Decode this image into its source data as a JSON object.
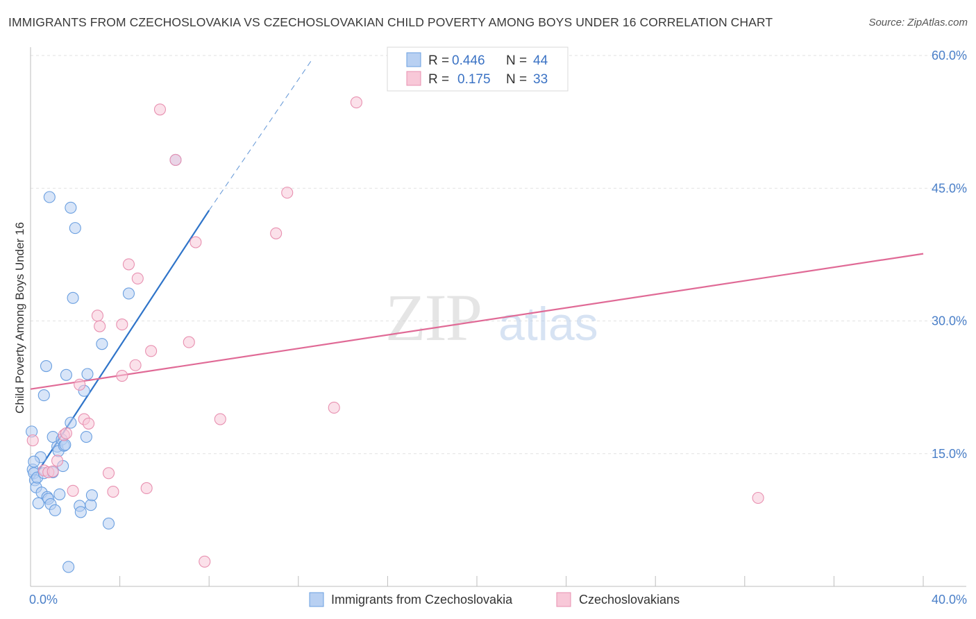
{
  "title": "IMMIGRANTS FROM CZECHOSLOVAKIA VS CZECHOSLOVAKIAN CHILD POVERTY AMONG BOYS UNDER 16 CORRELATION CHART",
  "source": "Source: ZipAtlas.com",
  "watermark": {
    "zip": "ZIP",
    "atlas": "atlas"
  },
  "chart_data": {
    "type": "scatter",
    "title": "IMMIGRANTS FROM CZECHOSLOVAKIA VS CZECHOSLOVAKIAN CHILD POVERTY AMONG BOYS UNDER 16 CORRELATION CHART",
    "xlabel": "",
    "ylabel": "Child Poverty Among Boys Under 16",
    "xlim": [
      0,
      40
    ],
    "ylim": [
      0,
      60
    ],
    "x_tick_labels": {
      "min": "0.0%",
      "max": "40.0%"
    },
    "y_ticks": [
      15,
      30,
      45,
      60
    ],
    "y_tick_labels": [
      "15.0%",
      "30.0%",
      "45.0%",
      "60.0%"
    ],
    "grid": true,
    "legend_position": "top-center",
    "stats": [
      {
        "r_label": "R =",
        "r": "0.446",
        "n_label": "N =",
        "n": "44"
      },
      {
        "r_label": "R =",
        "r": "0.175",
        "n_label": "N =",
        "n": "33"
      }
    ],
    "series": [
      {
        "name": "Immigrants from Czechoslovakia",
        "color": "#6a9fe0",
        "fill": "#b8d0f2",
        "line_color": "#2f74c9",
        "trend": {
          "x0": 0.1,
          "y0": 12.1,
          "x1": 8.0,
          "y1": 42.5,
          "dash_to_x": 12.6,
          "dash_to_y": 59.5
        },
        "points": [
          [
            0.05,
            17.5
          ],
          [
            0.1,
            13.2
          ],
          [
            0.15,
            12.8
          ],
          [
            0.2,
            12.0
          ],
          [
            0.25,
            11.2
          ],
          [
            0.3,
            12.3
          ],
          [
            0.35,
            9.4
          ],
          [
            0.45,
            14.6
          ],
          [
            0.5,
            10.6
          ],
          [
            0.6,
            21.6
          ],
          [
            0.7,
            24.9
          ],
          [
            0.75,
            10.1
          ],
          [
            0.8,
            9.9
          ],
          [
            0.85,
            44.0
          ],
          [
            0.9,
            9.3
          ],
          [
            1.0,
            16.9
          ],
          [
            1.1,
            8.6
          ],
          [
            1.2,
            15.8
          ],
          [
            1.25,
            15.3
          ],
          [
            1.3,
            10.4
          ],
          [
            1.4,
            16.6
          ],
          [
            1.5,
            15.9
          ],
          [
            1.45,
            13.6
          ],
          [
            1.55,
            16.0
          ],
          [
            1.6,
            23.9
          ],
          [
            1.7,
            2.2
          ],
          [
            1.8,
            42.8
          ],
          [
            1.8,
            18.5
          ],
          [
            1.9,
            32.6
          ],
          [
            2.0,
            40.5
          ],
          [
            2.2,
            9.1
          ],
          [
            2.25,
            8.4
          ],
          [
            2.4,
            22.1
          ],
          [
            2.5,
            16.9
          ],
          [
            2.55,
            24.0
          ],
          [
            2.7,
            9.2
          ],
          [
            2.75,
            10.3
          ],
          [
            3.2,
            27.4
          ],
          [
            3.5,
            7.1
          ],
          [
            4.4,
            33.1
          ],
          [
            6.5,
            48.2
          ],
          [
            0.6,
            12.8
          ],
          [
            0.15,
            14.1
          ],
          [
            1.0,
            12.9
          ]
        ]
      },
      {
        "name": "Czechoslovakians",
        "color": "#e890b0",
        "fill": "#f8c8d8",
        "line_color": "#e06a96",
        "trend": {
          "x0": 0.0,
          "y0": 22.3,
          "x1": 40.0,
          "y1": 37.6
        },
        "points": [
          [
            0.1,
            16.5
          ],
          [
            0.6,
            13.1
          ],
          [
            0.8,
            12.9
          ],
          [
            1.0,
            13.0
          ],
          [
            1.2,
            14.2
          ],
          [
            1.5,
            17.1
          ],
          [
            1.6,
            17.3
          ],
          [
            1.9,
            10.8
          ],
          [
            2.2,
            22.8
          ],
          [
            2.4,
            18.9
          ],
          [
            2.6,
            18.4
          ],
          [
            3.0,
            30.6
          ],
          [
            3.1,
            29.4
          ],
          [
            3.5,
            12.8
          ],
          [
            3.7,
            10.7
          ],
          [
            4.1,
            23.8
          ],
          [
            4.1,
            29.6
          ],
          [
            4.4,
            36.4
          ],
          [
            4.7,
            25.0
          ],
          [
            4.8,
            34.8
          ],
          [
            5.2,
            11.1
          ],
          [
            5.4,
            26.6
          ],
          [
            5.8,
            53.9
          ],
          [
            6.5,
            48.2
          ],
          [
            7.1,
            27.6
          ],
          [
            7.4,
            38.9
          ],
          [
            7.8,
            2.8
          ],
          [
            8.5,
            18.9
          ],
          [
            11.0,
            39.9
          ],
          [
            11.5,
            44.5
          ],
          [
            13.6,
            20.2
          ],
          [
            14.6,
            54.7
          ],
          [
            32.6,
            10.0
          ]
        ]
      }
    ]
  }
}
